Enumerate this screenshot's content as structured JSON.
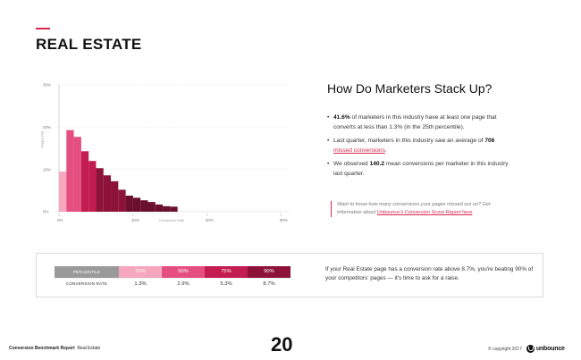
{
  "header": {
    "title": "REAL ESTATE",
    "accent_color": "#d7264f"
  },
  "chart_data": {
    "type": "bar",
    "ylabel": "Pages (%)",
    "xlabel": "Conversion Rate",
    "ylim": [
      0,
      30
    ],
    "xlim": [
      0,
      31
    ],
    "y_ticks": [
      "0%",
      "10%",
      "20%",
      "30%"
    ],
    "x_ticks": [
      "0%",
      "10%",
      "20%",
      "30%"
    ],
    "bin_width": 1,
    "values": [
      9.5,
      19.3,
      17.7,
      14.3,
      12.0,
      10.3,
      8.6,
      7.2,
      5.2,
      3.8,
      3.3,
      2.7,
      2.3,
      1.7,
      1.3,
      1.2
    ],
    "grid": true,
    "colors": {
      "p0_25": "#f6a7bd",
      "p25_50": "#e54e80",
      "p50_75": "#c21c51",
      "p75_90": "#8c1239",
      "p90_100": "#6b0f2f"
    }
  },
  "stats": {
    "title": "How Do Marketers Stack Up?",
    "b1_value": "41.6%",
    "b1_text": " of marketers in this industry have at least one page that converts at less than 1.3% (in the 25th percentile).",
    "b2_text": "Last quarter, marketers in this industry saw an average of ",
    "b2_value": "706",
    "b2_link": "missed conversions",
    "b2_end": ".",
    "b3_text": "We observed ",
    "b3_value": "140.2",
    "b3_end": " mean conversions per marketer in this industry last quarter."
  },
  "callout": {
    "text": "Want to know how many conversions your pages missed out on? Get information about ",
    "link": "Unbounce's Conversion Score Report here",
    "end": "."
  },
  "percentiles": {
    "header_label": "PERCENTILE",
    "row_label": "CONVERSION RATE",
    "headers": [
      "25%",
      "50%",
      "75%",
      "90%"
    ],
    "values": [
      "1.3%",
      "2.9%",
      "5.3%",
      "8.7%"
    ],
    "note": "If your Real Estate page has a conversion rate above 8.7%, you're beating 90% of your competitors' pages — it's time to ask for a raise."
  },
  "footer": {
    "report": "Conversion Benchmark Report",
    "section": "Real Estate",
    "page_number": "20",
    "copyright": "© copyright 2017",
    "brand": "unbounce"
  }
}
